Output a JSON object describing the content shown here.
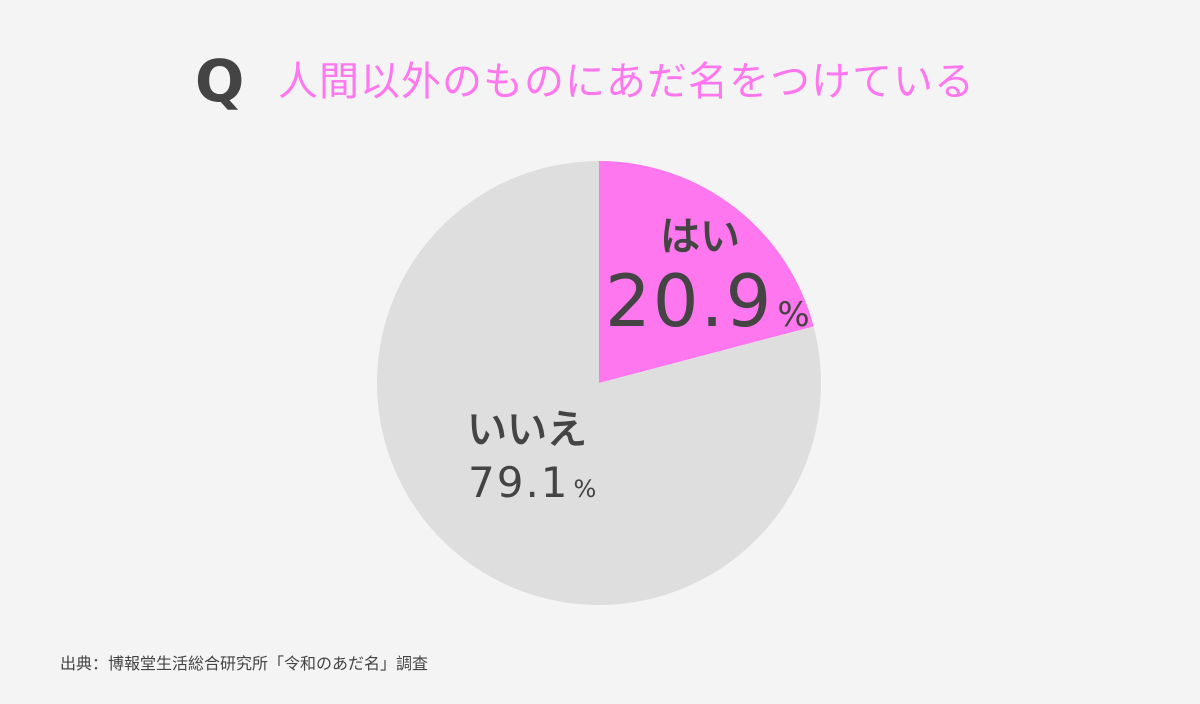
{
  "question_mark": "Q",
  "source": "出典：博報堂生活総合研究所「令和のあだ名」調査",
  "chart_data": {
    "type": "pie",
    "title": "人間以外のものにあだ名をつけている",
    "slices": [
      {
        "label": "はい",
        "value": 20.9,
        "value_text": "20.9",
        "unit": "%",
        "color": "#ff77ee"
      },
      {
        "label": "いいえ",
        "value": 79.1,
        "value_text": "79.1",
        "unit": "%",
        "color": "#dedede"
      }
    ],
    "start": "top",
    "direction": "clockwise",
    "legend": "none"
  }
}
